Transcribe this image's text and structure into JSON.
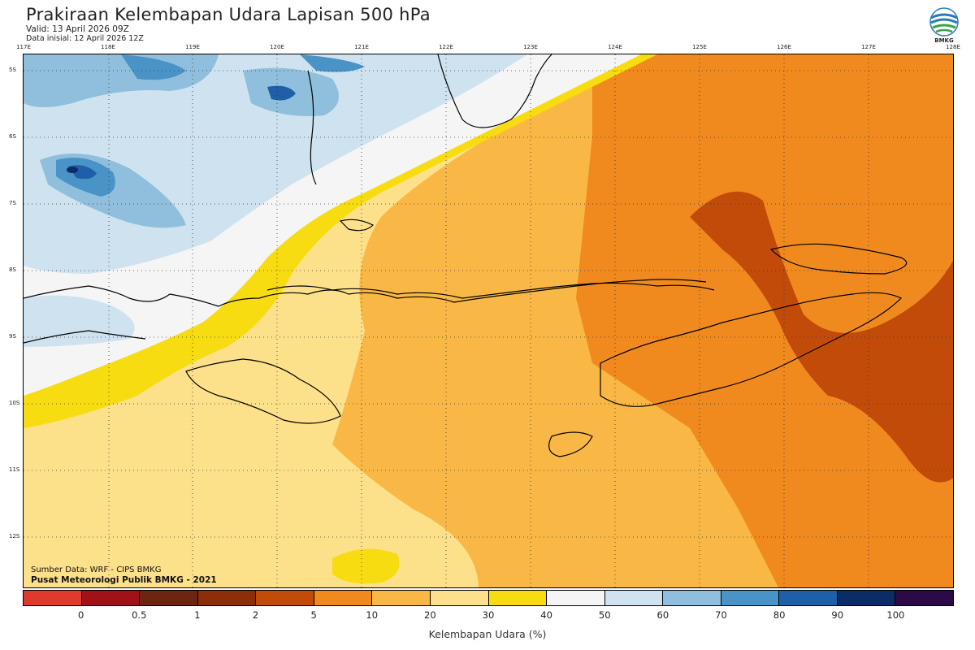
{
  "header": {
    "title": "Prakiraan Kelembapan Udara Lapisan 500 hPa",
    "valid": "Valid: 13 April 2026 09Z",
    "initial": "Data inisial: 12 April 2026 12Z"
  },
  "logo": {
    "text": "BMKG"
  },
  "axes": {
    "longitudes": [
      "117E",
      "118E",
      "119E",
      "120E",
      "121E",
      "122E",
      "123E",
      "124E",
      "125E",
      "126E",
      "127E",
      "128E"
    ],
    "latitudes": [
      "5S",
      "6S",
      "7S",
      "8S",
      "9S",
      "10S",
      "11S",
      "12S"
    ]
  },
  "credits": {
    "source": "Sumber Data: WRF - CIPS BMKG",
    "org": "Pusat Meteorologi Publik BMKG - 2021"
  },
  "colorbar": {
    "title": "Kelembapan Udara (%)",
    "colors": [
      "#e03a2e",
      "#a11218",
      "#6b2510",
      "#8c2e0a",
      "#c24b0a",
      "#f08a1e",
      "#f9b845",
      "#fde08a",
      "#f7dc12",
      "#f5f5f5",
      "#cfe2ef",
      "#8fbfdc",
      "#4a93c6",
      "#1f5fa8",
      "#0b2c66",
      "#2b0a45"
    ],
    "ticks": [
      "0",
      "0.5",
      "1",
      "2",
      "5",
      "10",
      "20",
      "30",
      "40",
      "50",
      "60",
      "70",
      "80",
      "90",
      "100"
    ]
  }
}
